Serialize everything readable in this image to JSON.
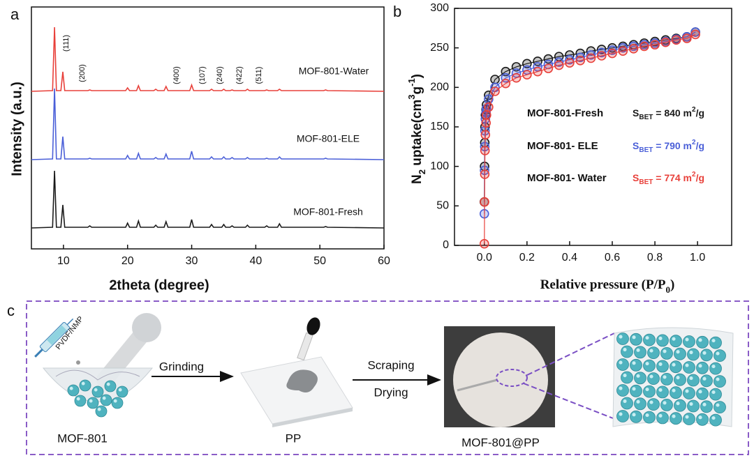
{
  "chart_data": [
    {
      "type": "line",
      "panel": "a",
      "xlabel": "2theta (degree)",
      "ylabel": "Intensity (a.u.)",
      "xlim": [
        5,
        60
      ],
      "xticks": [
        10,
        20,
        30,
        40,
        50,
        60
      ],
      "x": [
        5,
        8.3,
        8.6,
        8.9,
        9.6,
        9.9,
        10.2,
        13.8,
        14.1,
        14.4,
        19.7,
        20.0,
        20.3,
        21.4,
        21.7,
        22.0,
        24.1,
        24.4,
        24.7,
        25.7,
        26.0,
        26.3,
        29.7,
        30.0,
        30.3,
        32.8,
        33.1,
        33.4,
        34.7,
        35.0,
        35.3,
        36.0,
        36.3,
        36.6,
        38.4,
        38.7,
        39.0,
        41.4,
        41.7,
        42.0,
        43.4,
        43.7,
        44.0,
        50.6,
        50.9,
        51.2,
        60
      ],
      "series": [
        {
          "name": "MOF-801-Fresh",
          "color": "#1a1a1a",
          "values": [
            0,
            1,
            82,
            1,
            1,
            33,
            1,
            1,
            3,
            1,
            1,
            7,
            1,
            1,
            10,
            1,
            1,
            4,
            1,
            1,
            9,
            1,
            1,
            12,
            1,
            1,
            5,
            1,
            1,
            5,
            1,
            1,
            3,
            1,
            1,
            4,
            1,
            1,
            3,
            1,
            1,
            6,
            1,
            1,
            2,
            1,
            0
          ]
        },
        {
          "name": "MOF-801-ELE",
          "color": "#4a5fd8",
          "values": [
            0,
            1,
            102,
            1,
            1,
            33,
            1,
            1,
            2,
            1,
            1,
            6,
            1,
            1,
            9,
            1,
            1,
            3,
            1,
            1,
            8,
            1,
            1,
            12,
            1,
            1,
            4,
            1,
            1,
            4,
            1,
            1,
            3,
            1,
            1,
            3,
            1,
            1,
            2,
            1,
            1,
            4,
            1,
            1,
            2,
            1,
            0
          ]
        },
        {
          "name": "MOF-801-Water",
          "color": "#e8403a",
          "values": [
            0,
            1,
            92,
            1,
            1,
            28,
            1,
            1,
            2,
            1,
            1,
            5,
            1,
            1,
            8,
            1,
            1,
            3,
            1,
            1,
            7,
            1,
            1,
            9,
            1,
            1,
            3,
            1,
            1,
            3,
            1,
            1,
            2,
            1,
            1,
            3,
            1,
            1,
            2,
            1,
            1,
            3,
            1,
            1,
            2,
            1,
            0
          ]
        }
      ],
      "peak_labels": [
        "(111)",
        "(200)",
        "(400)",
        "(107)",
        "(240)",
        "(422)",
        "(511)"
      ]
    },
    {
      "type": "line",
      "panel": "b",
      "markers": true,
      "xlabel": [
        "Relative pressure (P/P",
        "0",
        ")"
      ],
      "ylabel": [
        "N",
        "2",
        " uptake(cm",
        "3",
        "g",
        "-1",
        ")"
      ],
      "xlim": [
        -0.14,
        1.16
      ],
      "xticks": [
        {
          "value": 0,
          "label": "0.0"
        },
        {
          "value": 0.2,
          "label": "0.2"
        },
        {
          "value": 0.4,
          "label": "0.4"
        },
        {
          "value": 0.6,
          "label": "0.6"
        },
        {
          "value": 0.8,
          "label": "0.8"
        },
        {
          "value": 1,
          "label": "1.0"
        }
      ],
      "ylim": [
        0,
        300
      ],
      "yticks": [
        0,
        50,
        100,
        150,
        200,
        250,
        300
      ],
      "x": [
        0.0,
        0.001,
        0.002,
        0.003,
        0.005,
        0.008,
        0.01,
        0.02,
        0.05,
        0.1,
        0.15,
        0.2,
        0.25,
        0.3,
        0.35,
        0.4,
        0.45,
        0.5,
        0.55,
        0.6,
        0.65,
        0.7,
        0.75,
        0.8,
        0.85,
        0.9,
        0.95,
        0.99
      ],
      "sbet_label": [
        "S",
        "BET",
        " = ",
        " m",
        "2",
        "/g"
      ],
      "series": [
        {
          "name": "MOF-801-Fresh",
          "color": "#1a1a1a",
          "s_bet": 840,
          "values": [
            55,
            100,
            130,
            150,
            165,
            172,
            178,
            190,
            210,
            220,
            226,
            230,
            233,
            236,
            239,
            241,
            243,
            246,
            248,
            250,
            252,
            254,
            256,
            258,
            260,
            262,
            264,
            270
          ]
        },
        {
          "name": "MOF-801- ELE",
          "color": "#4a5fd8",
          "s_bet": 790,
          "values": [
            40,
            95,
            125,
            145,
            160,
            168,
            173,
            185,
            200,
            212,
            218,
            222,
            226,
            229,
            232,
            235,
            238,
            241,
            244,
            247,
            250,
            252,
            254,
            256,
            258,
            261,
            264,
            270
          ]
        },
        {
          "name": "MOF-801- Water",
          "color": "#e8403a",
          "s_bet": 774,
          "values": [
            2,
            55,
            90,
            120,
            140,
            155,
            165,
            175,
            195,
            205,
            212,
            216,
            220,
            224,
            228,
            231,
            234,
            237,
            240,
            243,
            246,
            249,
            252,
            254,
            257,
            260,
            262,
            267
          ]
        }
      ]
    }
  ],
  "diagram": {
    "panel": "c",
    "reagent": "PVDF/NMP",
    "stages": [
      "MOF-801",
      "PP",
      "MOF-801@PP"
    ],
    "arrows": [
      [
        "Grinding"
      ],
      [
        "Scraping",
        "Drying"
      ]
    ]
  }
}
